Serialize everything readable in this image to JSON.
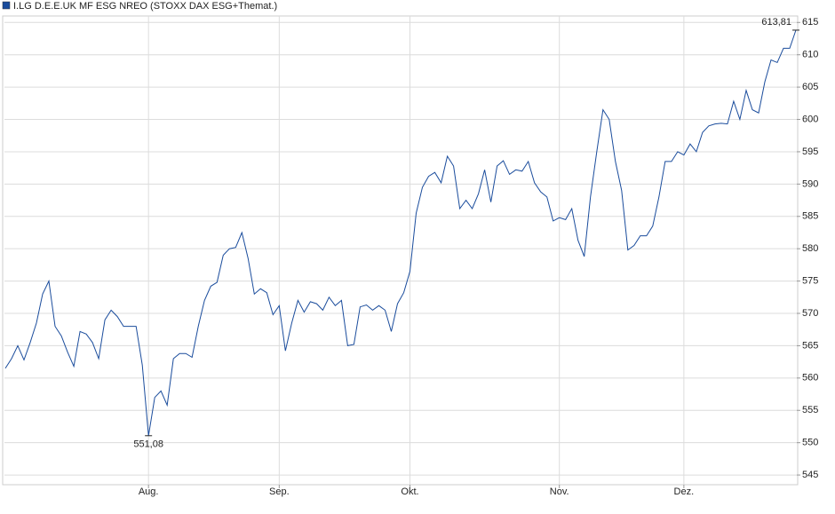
{
  "chart_data": {
    "type": "line",
    "series": [
      {
        "name": "I.LG D.E.E.UK MF ESG NREO (STOXX DAX ESG+Themat.)",
        "color": "#1a4c9c",
        "values": [
          561.5,
          563,
          565,
          562.8,
          565.5,
          568.5,
          573,
          575,
          568,
          566.5,
          564,
          561.8,
          567.2,
          566.8,
          565.5,
          563,
          569,
          570.5,
          569.5,
          568,
          568,
          568,
          562,
          551.08,
          557,
          558,
          555.8,
          563,
          563.8,
          563.8,
          563.2,
          568,
          572,
          574.2,
          574.8,
          579,
          580,
          580.2,
          582.5,
          578.5,
          573,
          573.8,
          573.2,
          569.8,
          571.2,
          564.2,
          568.5,
          572,
          570.2,
          571.8,
          571.5,
          570.5,
          572.5,
          571.2,
          572,
          565,
          565.2,
          571,
          571.3,
          570.5,
          571.2,
          570.5,
          567.2,
          571.5,
          573.2,
          576.5,
          585.5,
          589.5,
          591.2,
          591.8,
          590.2,
          594.3,
          592.8,
          586.2,
          587.5,
          586.2,
          588.5,
          592.2,
          587.2,
          592.8,
          593.6,
          591.5,
          592.2,
          592,
          593.5,
          590.2,
          588.8,
          588,
          584.3,
          584.8,
          584.5,
          586.2,
          581.3,
          578.8,
          588,
          595,
          601.5,
          600,
          593.5,
          589,
          579.8,
          580.5,
          582,
          582,
          583.5,
          588,
          593.5,
          593.5,
          595,
          594.5,
          596.2,
          595,
          598,
          599,
          599.3,
          599.4,
          599.3,
          602.8,
          600,
          604.5,
          601.5,
          601,
          605.8,
          609.2,
          608.8,
          611,
          611,
          613.81
        ]
      }
    ],
    "xlim": [
      -0.14,
      127.14
    ],
    "xticks": [
      {
        "value": 23,
        "label": "Aug."
      },
      {
        "value": 44,
        "label": "Sep."
      },
      {
        "value": 65,
        "label": "Okt."
      },
      {
        "value": 89,
        "label": "Nov."
      },
      {
        "value": 109,
        "label": "Dez."
      }
    ],
    "ylim": [
      543.5,
      616
    ],
    "yticks": [
      545,
      550,
      555,
      560,
      565,
      570,
      575,
      580,
      585,
      590,
      595,
      600,
      605,
      610,
      615
    ],
    "grid": true,
    "annotations": [
      {
        "value": 613.81,
        "label": "613,81"
      },
      {
        "value": 551.08,
        "label": "551,08"
      }
    ]
  }
}
